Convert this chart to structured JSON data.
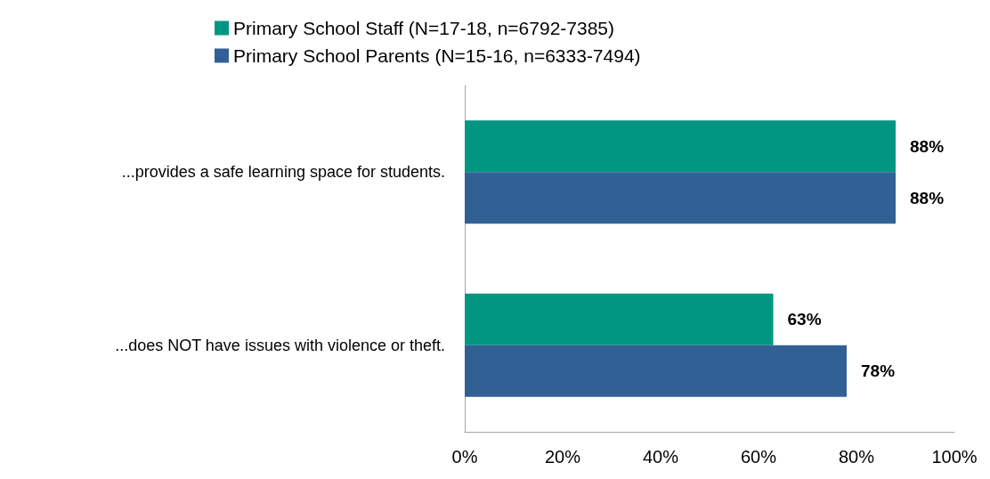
{
  "chart_data": {
    "type": "bar",
    "orientation": "horizontal",
    "categories": [
      "...provides a safe learning space for students.",
      "...does NOT have issues with violence or theft."
    ],
    "series": [
      {
        "name": "Primary School Staff (N=17-18, n=6792-7385)",
        "color": "#009682",
        "values": [
          88,
          63
        ],
        "value_labels": [
          "88%",
          "63%"
        ]
      },
      {
        "name": "Primary School Parents (N=15-16, n=6333-7494)",
        "color": "#316194",
        "values": [
          88,
          78
        ],
        "value_labels": [
          "88%",
          "78%"
        ]
      }
    ],
    "xlim": [
      0,
      100
    ],
    "xticks": [
      {
        "value": 0,
        "label": "0%"
      },
      {
        "value": 20,
        "label": "20%"
      },
      {
        "value": 40,
        "label": "40%"
      },
      {
        "value": 60,
        "label": "60%"
      },
      {
        "value": 80,
        "label": "80%"
      },
      {
        "value": 100,
        "label": "100%"
      }
    ],
    "grid": false,
    "legend": "top left"
  }
}
